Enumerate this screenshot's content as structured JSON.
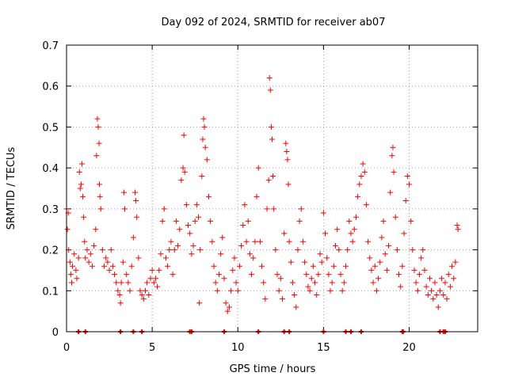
{
  "chart_data": {
    "type": "scatter",
    "title": "Day 092 of 2024, SRMTID for receiver ab07",
    "xlabel": "GPS time / hours",
    "ylabel": "SRMTID / TECUs",
    "xlim": [
      0,
      24
    ],
    "ylim": [
      0,
      0.7
    ],
    "grid": true,
    "marker": "+",
    "colors": {
      "series": "#ff0000",
      "grid": "#a0a0a0",
      "axis": "#000000"
    },
    "x_ticks": [
      "0",
      "5",
      "10",
      "15",
      "20"
    ],
    "x_tick_values": [
      0,
      5,
      10,
      15,
      20
    ],
    "y_ticks": [
      "0",
      "0.1",
      "0.2",
      "0.3",
      "0.4",
      "0.5",
      "0.6",
      "0.7"
    ],
    "y_tick_values": [
      0,
      0.1,
      0.2,
      0.3,
      0.4,
      0.5,
      0.6,
      0.7
    ],
    "series": [
      {
        "name": "SRMTID",
        "points": [
          [
            0.0,
            0.3
          ],
          [
            0.05,
            0.25
          ],
          [
            0.1,
            0.29
          ],
          [
            0.12,
            0.2
          ],
          [
            0.2,
            0.17
          ],
          [
            0.25,
            0.14
          ],
          [
            0.3,
            0.12
          ],
          [
            0.35,
            0.16
          ],
          [
            0.45,
            0.19
          ],
          [
            0.55,
            0.15
          ],
          [
            0.6,
            0.13
          ],
          [
            0.7,
            0.18
          ],
          [
            0.75,
            0.39
          ],
          [
            0.8,
            0.35
          ],
          [
            0.85,
            0.36
          ],
          [
            0.9,
            0.41
          ],
          [
            0.95,
            0.33
          ],
          [
            1.0,
            0.28
          ],
          [
            1.05,
            0.22
          ],
          [
            1.1,
            0.18
          ],
          [
            1.2,
            0.2
          ],
          [
            1.3,
            0.17
          ],
          [
            1.4,
            0.19
          ],
          [
            1.5,
            0.16
          ],
          [
            1.6,
            0.21
          ],
          [
            1.7,
            0.25
          ],
          [
            1.75,
            0.43
          ],
          [
            1.8,
            0.52
          ],
          [
            1.85,
            0.5
          ],
          [
            1.9,
            0.46
          ],
          [
            1.92,
            0.36
          ],
          [
            1.95,
            0.33
          ],
          [
            2.0,
            0.3
          ],
          [
            2.1,
            0.2
          ],
          [
            2.2,
            0.16
          ],
          [
            2.3,
            0.18
          ],
          [
            2.4,
            0.17
          ],
          [
            2.5,
            0.15
          ],
          [
            2.6,
            0.2
          ],
          [
            2.7,
            0.16
          ],
          [
            2.8,
            0.14
          ],
          [
            2.9,
            0.12
          ],
          [
            3.0,
            0.1
          ],
          [
            3.1,
            0.09
          ],
          [
            3.15,
            0.07
          ],
          [
            3.2,
            0.12
          ],
          [
            3.3,
            0.17
          ],
          [
            3.35,
            0.34
          ],
          [
            3.4,
            0.3
          ],
          [
            3.5,
            0.14
          ],
          [
            3.6,
            0.12
          ],
          [
            3.7,
            0.1
          ],
          [
            3.8,
            0.16
          ],
          [
            3.9,
            0.23
          ],
          [
            4.0,
            0.34
          ],
          [
            4.05,
            0.32
          ],
          [
            4.1,
            0.28
          ],
          [
            4.2,
            0.18
          ],
          [
            4.3,
            0.1
          ],
          [
            4.4,
            0.09
          ],
          [
            4.5,
            0.08
          ],
          [
            4.6,
            0.1
          ],
          [
            4.7,
            0.12
          ],
          [
            4.8,
            0.09
          ],
          [
            4.9,
            0.13
          ],
          [
            5.0,
            0.15
          ],
          [
            5.1,
            0.12
          ],
          [
            5.2,
            0.13
          ],
          [
            5.3,
            0.11
          ],
          [
            5.4,
            0.15
          ],
          [
            5.5,
            0.19
          ],
          [
            5.6,
            0.27
          ],
          [
            5.7,
            0.3
          ],
          [
            5.8,
            0.18
          ],
          [
            5.9,
            0.16
          ],
          [
            6.0,
            0.2
          ],
          [
            6.1,
            0.22
          ],
          [
            6.2,
            0.14
          ],
          [
            6.3,
            0.2
          ],
          [
            6.4,
            0.27
          ],
          [
            6.5,
            0.21
          ],
          [
            6.6,
            0.25
          ],
          [
            6.7,
            0.37
          ],
          [
            6.8,
            0.4
          ],
          [
            6.85,
            0.48
          ],
          [
            6.9,
            0.39
          ],
          [
            7.0,
            0.31
          ],
          [
            7.1,
            0.26
          ],
          [
            7.2,
            0.24
          ],
          [
            7.3,
            0.19
          ],
          [
            7.4,
            0.21
          ],
          [
            7.5,
            0.27
          ],
          [
            7.6,
            0.31
          ],
          [
            7.7,
            0.28
          ],
          [
            7.75,
            0.07
          ],
          [
            7.8,
            0.2
          ],
          [
            7.9,
            0.38
          ],
          [
            7.95,
            0.47
          ],
          [
            8.0,
            0.52
          ],
          [
            8.05,
            0.5
          ],
          [
            8.1,
            0.45
          ],
          [
            8.2,
            0.42
          ],
          [
            8.3,
            0.33
          ],
          [
            8.4,
            0.27
          ],
          [
            8.5,
            0.22
          ],
          [
            8.6,
            0.16
          ],
          [
            8.7,
            0.12
          ],
          [
            8.8,
            0.1
          ],
          [
            8.9,
            0.14
          ],
          [
            9.0,
            0.19
          ],
          [
            9.1,
            0.23
          ],
          [
            9.2,
            0.13
          ],
          [
            9.3,
            0.07
          ],
          [
            9.4,
            0.05
          ],
          [
            9.5,
            0.06
          ],
          [
            9.6,
            0.1
          ],
          [
            9.7,
            0.15
          ],
          [
            9.8,
            0.18
          ],
          [
            9.9,
            0.12
          ],
          [
            10.0,
            0.1
          ],
          [
            10.1,
            0.16
          ],
          [
            10.2,
            0.21
          ],
          [
            10.3,
            0.26
          ],
          [
            10.4,
            0.31
          ],
          [
            10.5,
            0.22
          ],
          [
            10.6,
            0.27
          ],
          [
            10.7,
            0.19
          ],
          [
            10.8,
            0.14
          ],
          [
            10.9,
            0.18
          ],
          [
            11.0,
            0.22
          ],
          [
            11.1,
            0.33
          ],
          [
            11.2,
            0.4
          ],
          [
            11.3,
            0.22
          ],
          [
            11.4,
            0.16
          ],
          [
            11.5,
            0.12
          ],
          [
            11.6,
            0.08
          ],
          [
            11.7,
            0.3
          ],
          [
            11.8,
            0.37
          ],
          [
            11.85,
            0.62
          ],
          [
            11.9,
            0.59
          ],
          [
            11.95,
            0.5
          ],
          [
            12.0,
            0.47
          ],
          [
            12.05,
            0.38
          ],
          [
            12.1,
            0.3
          ],
          [
            12.2,
            0.2
          ],
          [
            12.3,
            0.14
          ],
          [
            12.4,
            0.1
          ],
          [
            12.5,
            0.13
          ],
          [
            12.6,
            0.08
          ],
          [
            12.7,
            0.24
          ],
          [
            12.8,
            0.46
          ],
          [
            12.85,
            0.44
          ],
          [
            12.9,
            0.42
          ],
          [
            12.95,
            0.36
          ],
          [
            13.0,
            0.22
          ],
          [
            13.1,
            0.17
          ],
          [
            13.2,
            0.12
          ],
          [
            13.3,
            0.09
          ],
          [
            13.4,
            0.06
          ],
          [
            13.5,
            0.2
          ],
          [
            13.6,
            0.27
          ],
          [
            13.7,
            0.3
          ],
          [
            13.8,
            0.22
          ],
          [
            13.9,
            0.17
          ],
          [
            14.0,
            0.14
          ],
          [
            14.1,
            0.11
          ],
          [
            14.2,
            0.1
          ],
          [
            14.3,
            0.13
          ],
          [
            14.4,
            0.16
          ],
          [
            14.5,
            0.12
          ],
          [
            14.6,
            0.09
          ],
          [
            14.7,
            0.14
          ],
          [
            14.8,
            0.19
          ],
          [
            14.9,
            0.17
          ],
          [
            15.0,
            0.29
          ],
          [
            15.1,
            0.24
          ],
          [
            15.2,
            0.18
          ],
          [
            15.3,
            0.14
          ],
          [
            15.4,
            0.1
          ],
          [
            15.5,
            0.12
          ],
          [
            15.6,
            0.16
          ],
          [
            15.7,
            0.21
          ],
          [
            15.8,
            0.25
          ],
          [
            15.9,
            0.2
          ],
          [
            16.0,
            0.14
          ],
          [
            16.1,
            0.1
          ],
          [
            16.2,
            0.12
          ],
          [
            16.3,
            0.16
          ],
          [
            16.4,
            0.2
          ],
          [
            16.5,
            0.27
          ],
          [
            16.6,
            0.24
          ],
          [
            16.7,
            0.22
          ],
          [
            16.8,
            0.25
          ],
          [
            16.9,
            0.28
          ],
          [
            17.0,
            0.33
          ],
          [
            17.1,
            0.36
          ],
          [
            17.2,
            0.38
          ],
          [
            17.3,
            0.41
          ],
          [
            17.4,
            0.39
          ],
          [
            17.5,
            0.31
          ],
          [
            17.6,
            0.22
          ],
          [
            17.7,
            0.18
          ],
          [
            17.8,
            0.15
          ],
          [
            17.9,
            0.12
          ],
          [
            18.0,
            0.16
          ],
          [
            18.1,
            0.1
          ],
          [
            18.2,
            0.13
          ],
          [
            18.3,
            0.17
          ],
          [
            18.4,
            0.23
          ],
          [
            18.5,
            0.27
          ],
          [
            18.6,
            0.19
          ],
          [
            18.7,
            0.15
          ],
          [
            18.8,
            0.21
          ],
          [
            18.9,
            0.34
          ],
          [
            19.0,
            0.43
          ],
          [
            19.05,
            0.45
          ],
          [
            19.1,
            0.39
          ],
          [
            19.2,
            0.28
          ],
          [
            19.3,
            0.2
          ],
          [
            19.4,
            0.14
          ],
          [
            19.5,
            0.11
          ],
          [
            19.6,
            0.16
          ],
          [
            19.7,
            0.24
          ],
          [
            19.8,
            0.32
          ],
          [
            19.9,
            0.38
          ],
          [
            20.0,
            0.36
          ],
          [
            20.1,
            0.27
          ],
          [
            20.2,
            0.2
          ],
          [
            20.3,
            0.15
          ],
          [
            20.4,
            0.12
          ],
          [
            20.5,
            0.1
          ],
          [
            20.6,
            0.14
          ],
          [
            20.7,
            0.18
          ],
          [
            20.8,
            0.2
          ],
          [
            20.9,
            0.15
          ],
          [
            21.0,
            0.11
          ],
          [
            21.1,
            0.09
          ],
          [
            21.2,
            0.13
          ],
          [
            21.3,
            0.1
          ],
          [
            21.4,
            0.08
          ],
          [
            21.5,
            0.12
          ],
          [
            21.6,
            0.09
          ],
          [
            21.7,
            0.06
          ],
          [
            21.8,
            0.1
          ],
          [
            21.9,
            0.13
          ],
          [
            22.0,
            0.09
          ],
          [
            22.1,
            0.12
          ],
          [
            22.2,
            0.08
          ],
          [
            22.3,
            0.14
          ],
          [
            22.4,
            0.11
          ],
          [
            22.5,
            0.16
          ],
          [
            22.6,
            0.13
          ],
          [
            22.7,
            0.17
          ],
          [
            22.8,
            0.26
          ],
          [
            22.85,
            0.25
          ]
        ]
      }
    ],
    "zero_markers": [
      0.7,
      1.1,
      3.15,
      3.9,
      4.4,
      7.2,
      7.3,
      9.2,
      11.2,
      12.7,
      13.0,
      15.0,
      16.3,
      16.6,
      17.2,
      19.6,
      19.65,
      21.8,
      22.0,
      22.1
    ]
  }
}
